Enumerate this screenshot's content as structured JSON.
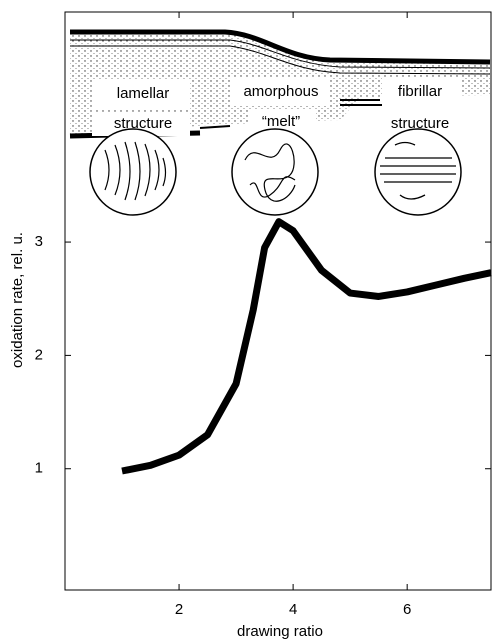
{
  "chart_data": {
    "type": "line",
    "x_label": "drawing ratio",
    "y_label": "oxidation rate, rel. u.",
    "annotations": [
      "lamellar",
      "structure",
      "amorphous",
      "“melt”",
      "fibrillar",
      "structure"
    ],
    "x": [
      1.0,
      1.5,
      2.0,
      2.5,
      3.0,
      3.3,
      3.5,
      3.75,
      4.0,
      4.5,
      5.0,
      5.5,
      6.0,
      6.5,
      7.0,
      7.47
    ],
    "values": [
      0.98,
      1.03,
      1.12,
      1.3,
      1.75,
      2.4,
      2.95,
      3.18,
      3.1,
      2.75,
      2.55,
      2.52,
      2.56,
      2.62,
      2.68,
      2.73
    ],
    "color": "#000000",
    "xlim": [
      0,
      7.47
    ],
    "ylim": [
      -0.07,
      5.03
    ],
    "xticks": [
      2,
      4,
      6
    ],
    "yticks": [
      1,
      2,
      3
    ],
    "grid": false
  }
}
